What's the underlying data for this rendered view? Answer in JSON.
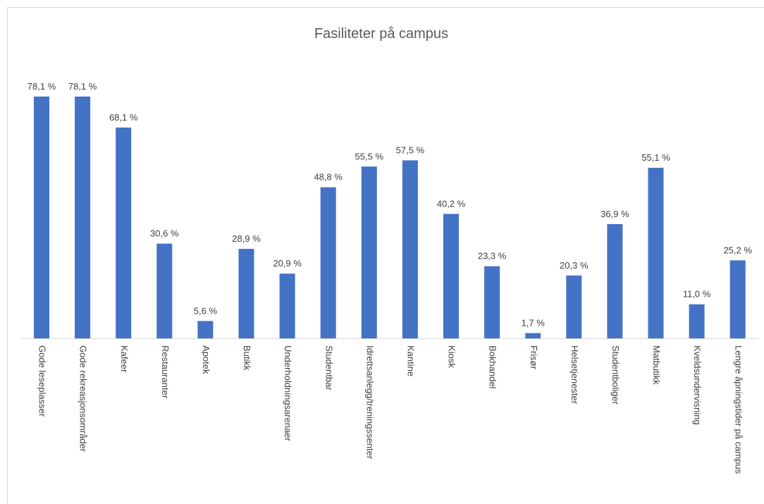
{
  "chart_data": {
    "type": "bar",
    "title": "Fasiliteter på campus",
    "categories": [
      "Gode leseplasser",
      "Gode rekreasjonsområder",
      "Kafeer",
      "Restauranter",
      "Apotek",
      "Butikk",
      "Underholdningsarenaer",
      "Studentbar",
      "Idrettsanlegg/treningssenter",
      "Kantine",
      "Kiosk",
      "Bokhandel",
      "Frisør",
      "Helsetjenester",
      "Studentboliger",
      "Matbutikk",
      "Kveldsundervisning",
      "Lengre åpningstider på campus"
    ],
    "values": [
      78.1,
      78.1,
      68.1,
      30.6,
      5.6,
      28.9,
      20.9,
      48.8,
      55.5,
      57.5,
      40.2,
      23.3,
      1.7,
      20.3,
      36.9,
      55.1,
      11.0,
      25.2
    ],
    "value_labels": [
      "78,1 %",
      "78,1 %",
      "68,1 %",
      "30,6 %",
      "5,6 %",
      "28,9 %",
      "20,9 %",
      "48,8 %",
      "55,5 %",
      "57,5 %",
      "40,2 %",
      "23,3 %",
      "1,7 %",
      "20,3 %",
      "36,9 %",
      "55,1 %",
      "11,0 %",
      "25,2 %"
    ],
    "color": "#4472c4"
  }
}
